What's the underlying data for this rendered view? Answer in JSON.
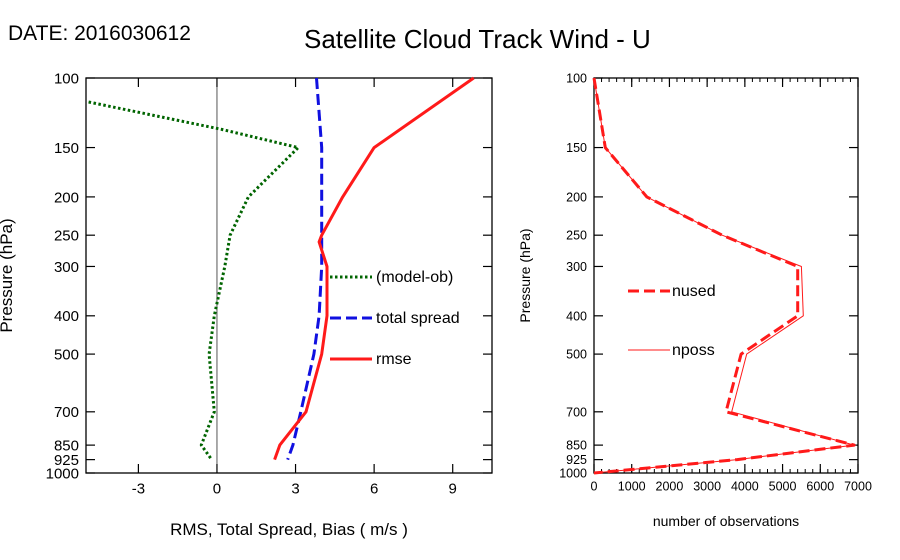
{
  "header": {
    "date_label": "DATE: 2016030612",
    "title": "Satellite Cloud Track Wind - U"
  },
  "chart_data": [
    {
      "type": "line",
      "name": "stats-panel",
      "xlabel": "RMS, Total Spread, Bias ( m/s )",
      "ylabel": "Pressure (hPa)",
      "xlim": [
        -5,
        10.5
      ],
      "ylim": [
        1000,
        100
      ],
      "yscale": "log",
      "xticks": [
        -3,
        0,
        3,
        6,
        9
      ],
      "xtick_labels": [
        "-3",
        "0",
        "3",
        "6",
        "9"
      ],
      "yticks": [
        100,
        150,
        200,
        250,
        300,
        400,
        500,
        700,
        850,
        925,
        1000
      ],
      "ytick_labels": [
        "100",
        "150",
        "200",
        "250",
        "300",
        "400",
        "500",
        "700",
        "850",
        "925",
        "1000"
      ],
      "zero_line": 0,
      "legend_position": "center-right",
      "series": [
        {
          "name": "(model-ob)",
          "color": "#006400",
          "style": "dotted",
          "levels": [
            115,
            135,
            150,
            200,
            250,
            300,
            400,
            500,
            700,
            850,
            925
          ],
          "values": [
            -4.9,
            0.2,
            3.1,
            1.2,
            0.5,
            0.3,
            -0.1,
            -0.3,
            -0.1,
            -0.6,
            -0.2
          ]
        },
        {
          "name": "total spread",
          "color": "#1010e0",
          "style": "dashed",
          "levels": [
            100,
            150,
            200,
            250,
            300,
            400,
            500,
            700,
            850,
            925
          ],
          "values": [
            3.8,
            4.0,
            4.0,
            4.0,
            4.0,
            3.9,
            3.7,
            3.2,
            2.9,
            2.7
          ]
        },
        {
          "name": "rmse",
          "color": "#ff1a1a",
          "style": "solid",
          "levels": [
            100,
            150,
            200,
            250,
            260,
            300,
            400,
            500,
            700,
            850,
            925
          ],
          "values": [
            9.8,
            6.0,
            4.8,
            4.0,
            3.9,
            4.2,
            4.2,
            4.0,
            3.4,
            2.4,
            2.2
          ]
        }
      ]
    },
    {
      "type": "line",
      "name": "obs-count-panel",
      "xlabel": "number of observations",
      "ylabel": "Pressure (hPa)",
      "xlim": [
        0,
        7000
      ],
      "ylim": [
        1000,
        100
      ],
      "yscale": "log",
      "xticks": [
        0,
        1000,
        2000,
        3000,
        4000,
        5000,
        6000,
        7000
      ],
      "xtick_labels": [
        "0",
        "1000",
        "2000",
        "3000",
        "4000",
        "5000",
        "6000",
        "7000"
      ],
      "yticks": [
        100,
        150,
        200,
        250,
        300,
        400,
        500,
        700,
        850,
        925,
        1000
      ],
      "ytick_labels": [
        "100",
        "150",
        "200",
        "250",
        "300",
        "400",
        "500",
        "700",
        "850",
        "925",
        "1000"
      ],
      "legend_position": "center-left",
      "series": [
        {
          "name": "nused",
          "color": "#ff1a1a",
          "style": "dashed",
          "levels": [
            100,
            150,
            200,
            250,
            300,
            400,
            500,
            700,
            850,
            925,
            1000
          ],
          "values": [
            0,
            300,
            1400,
            3400,
            5400,
            5400,
            3900,
            3500,
            6900,
            3800,
            0
          ]
        },
        {
          "name": "nposs",
          "color": "#ff1a1a",
          "style": "thin",
          "levels": [
            100,
            150,
            200,
            250,
            300,
            400,
            500,
            700,
            850,
            925,
            1000
          ],
          "values": [
            0,
            300,
            1400,
            3400,
            5500,
            5550,
            4050,
            3650,
            6900,
            3800,
            0
          ]
        }
      ]
    }
  ]
}
